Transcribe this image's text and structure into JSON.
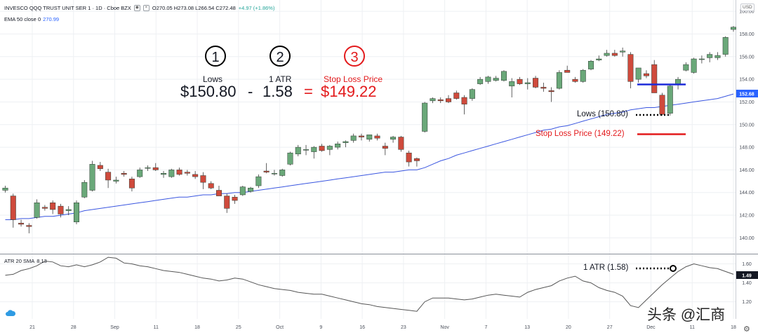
{
  "header": {
    "symbol": "INVESCO QQQ TRUST UNIT SER 1 · 1D · Cboe BZX",
    "ohlc": "O270.05 H273.08 L266.54 C272.48",
    "change": "+4.97 (+1.86%)",
    "ema_label": "EMA 50 close 0",
    "ema_value": "270.99",
    "atr_label": "ATR 20 SMA",
    "atr_value": "8.13",
    "currency": "USD"
  },
  "annotations": {
    "step1_num": "1",
    "step2_num": "2",
    "step3_num": "3",
    "step1_label": "Lows",
    "step2_label": "1 ATR",
    "step3_label": "Stop Loss Price",
    "formula_lows": "$150.80",
    "formula_minus": "-",
    "formula_atr": "1.58",
    "formula_eq": "=",
    "formula_result": "$149.22",
    "lows_callout": "Lows (150.80)",
    "stop_callout": "Stop Loss Price (149.22)",
    "atr_callout": "1 ATR (1.58)"
  },
  "watermark": "头条 @汇商",
  "colors": {
    "up": "#6aa879",
    "down": "#cf4a3c",
    "ema": "#3a56e0",
    "atr": "#555555",
    "accent_red": "#e31a1c",
    "blue_line": "#1d2bd9"
  },
  "chart_data": [
    {
      "type": "candlestick",
      "title": "INVESCO QQQ TRUST UNIT SER 1 · 1D · Cboe BZX",
      "y_axis_ticks": [
        140,
        142,
        144,
        146,
        148,
        150,
        152,
        154,
        156,
        158,
        160
      ],
      "ylim": [
        138.6,
        161.0
      ],
      "x_axis_ticks": [
        "21",
        "28",
        "Sep",
        "11",
        "18",
        "25",
        "Oct",
        "9",
        "16",
        "23",
        "Nov",
        "7",
        "13",
        "20",
        "27",
        "Dec",
        "11",
        "18"
      ],
      "last_price_badge": "152.68",
      "candles": [
        [
          144.2,
          144.6,
          144.0,
          144.4
        ],
        [
          143.7,
          143.9,
          140.9,
          141.6
        ],
        [
          141.3,
          141.6,
          141.0,
          141.2
        ],
        [
          141.1,
          141.3,
          140.4,
          141.0
        ],
        [
          141.8,
          143.4,
          141.7,
          143.1
        ],
        [
          142.7,
          142.9,
          142.4,
          142.6
        ],
        [
          143.1,
          143.3,
          142.1,
          142.5
        ],
        [
          142.8,
          143.0,
          141.8,
          142.1
        ],
        [
          142.4,
          142.8,
          142.0,
          142.5
        ],
        [
          141.4,
          143.3,
          141.2,
          143.1
        ],
        [
          143.6,
          145.1,
          143.5,
          144.9
        ],
        [
          144.2,
          146.8,
          144.1,
          146.5
        ],
        [
          146.4,
          146.7,
          145.9,
          146.1
        ],
        [
          145.8,
          146.1,
          144.4,
          145.1
        ],
        [
          145.0,
          145.4,
          144.8,
          145.1
        ],
        [
          145.7,
          145.9,
          145.4,
          145.6
        ],
        [
          145.2,
          145.4,
          144.1,
          144.4
        ],
        [
          145.4,
          146.2,
          145.3,
          146.0
        ],
        [
          146.2,
          146.4,
          145.9,
          146.2
        ],
        [
          146.2,
          146.6,
          145.9,
          146.0
        ],
        [
          145.6,
          145.9,
          145.3,
          145.7
        ],
        [
          145.4,
          146.1,
          145.3,
          146.0
        ],
        [
          146.0,
          146.2,
          145.5,
          145.6
        ],
        [
          145.8,
          146.0,
          145.5,
          145.7
        ],
        [
          145.6,
          145.9,
          145.2,
          145.4
        ],
        [
          145.5,
          145.8,
          144.3,
          144.9
        ],
        [
          144.8,
          145.0,
          144.3,
          144.4
        ],
        [
          144.2,
          144.6,
          143.7,
          143.7
        ],
        [
          143.7,
          143.9,
          142.2,
          142.6
        ],
        [
          143.6,
          143.8,
          143.0,
          143.3
        ],
        [
          143.8,
          144.6,
          143.7,
          144.5
        ],
        [
          144.1,
          144.5,
          144.0,
          144.4
        ],
        [
          144.6,
          145.6,
          144.4,
          145.4
        ],
        [
          145.9,
          146.6,
          145.7,
          145.8
        ],
        [
          145.7,
          146.0,
          145.5,
          145.7
        ],
        [
          145.5,
          146.1,
          145.4,
          146.0
        ],
        [
          146.5,
          147.6,
          146.4,
          147.5
        ],
        [
          147.4,
          148.2,
          147.2,
          148.0
        ],
        [
          147.8,
          148.2,
          147.3,
          147.8
        ],
        [
          147.6,
          148.1,
          147.0,
          148.0
        ],
        [
          148.1,
          148.3,
          147.6,
          147.7
        ],
        [
          147.8,
          148.2,
          147.3,
          148.1
        ],
        [
          148.0,
          148.5,
          147.8,
          148.3
        ],
        [
          148.4,
          148.6,
          148.0,
          148.5
        ],
        [
          148.6,
          149.2,
          148.4,
          149.0
        ],
        [
          149.0,
          149.2,
          148.6,
          148.9
        ],
        [
          148.7,
          149.1,
          148.5,
          149.1
        ],
        [
          149.0,
          149.2,
          148.6,
          148.8
        ],
        [
          148.1,
          148.4,
          147.3,
          147.9
        ],
        [
          148.7,
          149.0,
          148.4,
          148.9
        ],
        [
          148.9,
          149.0,
          147.6,
          147.8
        ],
        [
          147.5,
          147.7,
          146.3,
          146.7
        ],
        [
          147.0,
          147.1,
          146.3,
          146.8
        ],
        [
          149.4,
          152.0,
          149.3,
          151.9
        ],
        [
          152.1,
          152.4,
          151.9,
          152.3
        ],
        [
          152.2,
          152.4,
          151.9,
          152.1
        ],
        [
          152.3,
          152.6,
          151.9,
          152.0
        ],
        [
          152.8,
          153.0,
          152.2,
          152.3
        ],
        [
          152.4,
          152.6,
          150.9,
          151.8
        ],
        [
          152.3,
          153.2,
          152.1,
          153.1
        ],
        [
          153.6,
          154.2,
          153.5,
          154.0
        ],
        [
          153.8,
          154.3,
          153.6,
          154.2
        ],
        [
          153.9,
          154.3,
          153.8,
          154.1
        ],
        [
          153.9,
          154.8,
          153.8,
          154.7
        ],
        [
          153.4,
          154.1,
          152.4,
          153.8
        ],
        [
          154.0,
          154.2,
          153.5,
          153.6
        ],
        [
          153.6,
          154.1,
          153.1,
          153.7
        ],
        [
          154.1,
          154.3,
          153.2,
          153.3
        ],
        [
          153.3,
          153.7,
          152.9,
          153.2
        ],
        [
          153.0,
          153.3,
          152.0,
          152.9
        ],
        [
          153.2,
          154.8,
          153.1,
          154.6
        ],
        [
          154.8,
          155.2,
          154.6,
          154.6
        ],
        [
          154.0,
          154.2,
          153.7,
          153.8
        ],
        [
          153.8,
          154.9,
          153.7,
          154.8
        ],
        [
          154.9,
          155.7,
          154.8,
          155.6
        ],
        [
          155.7,
          156.1,
          155.6,
          155.8
        ],
        [
          156.1,
          156.6,
          156.0,
          156.3
        ],
        [
          156.3,
          156.6,
          156.0,
          156.1
        ],
        [
          156.4,
          156.8,
          156.0,
          156.5
        ],
        [
          156.2,
          156.4,
          153.2,
          153.8
        ],
        [
          154.0,
          155.0,
          153.7,
          155.0
        ],
        [
          154.5,
          154.8,
          154.1,
          154.3
        ],
        [
          155.3,
          155.7,
          152.8,
          152.8
        ],
        [
          152.6,
          152.8,
          150.8,
          150.9
        ],
        [
          151.0,
          153.6,
          150.8,
          153.4
        ],
        [
          153.5,
          154.2,
          153.1,
          154.0
        ],
        [
          154.8,
          155.5,
          154.7,
          155.3
        ],
        [
          154.6,
          155.9,
          154.5,
          155.8
        ],
        [
          155.8,
          156.1,
          155.4,
          155.8
        ],
        [
          155.9,
          156.4,
          155.5,
          156.2
        ],
        [
          155.9,
          156.4,
          155.7,
          156.1
        ],
        [
          156.2,
          157.8,
          156.0,
          157.7
        ],
        [
          158.4,
          158.7,
          158.2,
          158.6
        ]
      ],
      "ema50": [
        141.6,
        141.6,
        141.7,
        141.7,
        141.8,
        141.9,
        141.9,
        142.0,
        142.1,
        142.2,
        142.4,
        142.5,
        142.6,
        142.7,
        142.8,
        142.9,
        143.0,
        143.1,
        143.2,
        143.3,
        143.4,
        143.5,
        143.6,
        143.6,
        143.7,
        143.8,
        143.8,
        143.9,
        143.9,
        144.0,
        144.0,
        144.1,
        144.2,
        144.3,
        144.4,
        144.5,
        144.6,
        144.7,
        144.8,
        144.9,
        145.0,
        145.1,
        145.2,
        145.3,
        145.4,
        145.5,
        145.6,
        145.7,
        145.8,
        145.8,
        145.9,
        146.0,
        146.0,
        146.2,
        146.5,
        146.8,
        147.0,
        147.3,
        147.5,
        147.7,
        147.9,
        148.1,
        148.3,
        148.5,
        148.7,
        148.9,
        149.1,
        149.3,
        149.5,
        149.6,
        149.8,
        149.9,
        150.1,
        150.3,
        150.5,
        150.7,
        150.9,
        151.0,
        151.1,
        151.3,
        151.4,
        151.5,
        151.5,
        151.6,
        151.7,
        151.8,
        151.9,
        152.0,
        152.1,
        152.2,
        152.3,
        152.5,
        152.7
      ]
    },
    {
      "type": "line",
      "title": "ATR 20 SMA",
      "y_axis_ticks": [
        1.2,
        1.4,
        1.6
      ],
      "ylim": [
        1.02,
        1.7
      ],
      "last_value_badge": "1.49",
      "series": [
        {
          "values": [
            1.48,
            1.49,
            1.53,
            1.55,
            1.58,
            1.63,
            1.62,
            1.58,
            1.57,
            1.59,
            1.57,
            1.59,
            1.62,
            1.67,
            1.66,
            1.61,
            1.6,
            1.58,
            1.57,
            1.55,
            1.53,
            1.52,
            1.51,
            1.49,
            1.47,
            1.45,
            1.44,
            1.42,
            1.43,
            1.45,
            1.44,
            1.41,
            1.38,
            1.36,
            1.34,
            1.33,
            1.32,
            1.3,
            1.29,
            1.28,
            1.28,
            1.26,
            1.24,
            1.22,
            1.2,
            1.18,
            1.17,
            1.15,
            1.14,
            1.13,
            1.12,
            1.11,
            1.1,
            1.2,
            1.24,
            1.24,
            1.24,
            1.23,
            1.22,
            1.23,
            1.25,
            1.27,
            1.28,
            1.27,
            1.26,
            1.25,
            1.3,
            1.33,
            1.35,
            1.37,
            1.42,
            1.45,
            1.47,
            1.42,
            1.4,
            1.35,
            1.32,
            1.3,
            1.26,
            1.16,
            1.14,
            1.22,
            1.3,
            1.38,
            1.45,
            1.52,
            1.57,
            1.6,
            1.58,
            1.56,
            1.55,
            1.52,
            1.49
          ]
        }
      ]
    }
  ]
}
